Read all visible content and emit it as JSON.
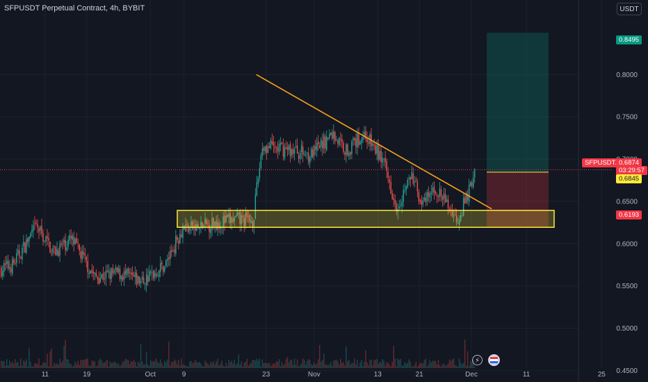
{
  "title": "SFPUSDT Perpetual Contract, 4h, BYBIT",
  "currency": "USDT",
  "price_tags": {
    "target": "0.8495",
    "symbol": "SFPUSDT.P",
    "last": "0.6874",
    "countdown": "03:29:57",
    "entry": "0.6845",
    "stop": "0.6193"
  },
  "colors": {
    "background": "#131722",
    "up": "#26a69a",
    "down": "#ef5350",
    "trendline": "#f7a21b",
    "zone_border": "#ffeb3b",
    "target_tag": "#089981",
    "last_tag": "#f23645",
    "entry_tag": "#ffeb3b"
  },
  "icons": {
    "flash": "lightning-icon",
    "flag": "flag-icon"
  },
  "chart_data": {
    "type": "candlestick",
    "timeframe": "4h",
    "x_ticks": [
      "11",
      "19",
      "Oct",
      "9",
      "23",
      "Nov",
      "13",
      "21",
      "Dec",
      "11",
      "25"
    ],
    "y_ticks": [
      "0.4500",
      "0.5000",
      "0.5500",
      "0.6000",
      "0.6500",
      "0.7000",
      "0.7500",
      "0.8000"
    ],
    "ylim": [
      0.4363,
      0.8882
    ],
    "grid": true,
    "path": [
      [
        0,
        0.57
      ],
      [
        0.02,
        0.575
      ],
      [
        0.06,
        0.62
      ],
      [
        0.09,
        0.59
      ],
      [
        0.12,
        0.605
      ],
      [
        0.16,
        0.56
      ],
      [
        0.2,
        0.565
      ],
      [
        0.24,
        0.555
      ],
      [
        0.28,
        0.575
      ],
      [
        0.31,
        0.62
      ],
      [
        0.335,
        0.618
      ],
      [
        0.365,
        0.625
      ],
      [
        0.4,
        0.628
      ],
      [
        0.43,
        0.628
      ],
      [
        0.445,
        0.715
      ],
      [
        0.5,
        0.71
      ],
      [
        0.53,
        0.705
      ],
      [
        0.565,
        0.73
      ],
      [
        0.59,
        0.71
      ],
      [
        0.62,
        0.73
      ],
      [
        0.65,
        0.7
      ],
      [
        0.675,
        0.645
      ],
      [
        0.7,
        0.68
      ],
      [
        0.72,
        0.645
      ],
      [
        0.74,
        0.665
      ],
      [
        0.76,
        0.648
      ],
      [
        0.778,
        0.628
      ],
      [
        0.79,
        0.648
      ],
      [
        0.8,
        0.665
      ],
      [
        0.808,
        0.69
      ]
    ],
    "trendline": {
      "start": [
        0.443,
        0.8
      ],
      "end": [
        0.85,
        0.641
      ]
    },
    "support_zone": {
      "low": 0.6193,
      "high": 0.6393
    },
    "position": {
      "entry": 0.6845,
      "target": 0.8495,
      "stop": 0.6193
    },
    "last_price": 0.6874
  }
}
